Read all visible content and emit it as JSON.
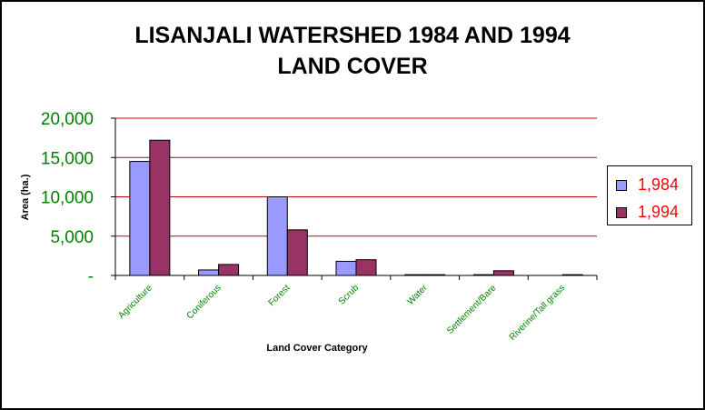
{
  "chart_data": {
    "type": "bar",
    "title_line1": "LISANJALI WATERSHED 1984 AND 1994",
    "title_line2": "LAND COVER",
    "xlabel": "Land Cover Category",
    "ylabel": "Area (ha.)",
    "categories": [
      "Agriculture",
      "Coniferous",
      "Forest",
      "Scrub",
      "Water",
      "Settlement/Bare",
      "Riverine/Tall grass"
    ],
    "series": [
      {
        "name": "1,984",
        "color": "#9999ff",
        "values": [
          14500,
          700,
          10000,
          1800,
          100,
          100,
          0
        ]
      },
      {
        "name": "1,994",
        "color": "#993366",
        "values": [
          17200,
          1400,
          5800,
          2000,
          100,
          600,
          100
        ]
      }
    ],
    "ylim": [
      0,
      20000
    ],
    "yticks": [
      {
        "value": 0,
        "label": "-"
      },
      {
        "value": 5000,
        "label": "5,000"
      },
      {
        "value": 10000,
        "label": "10,000"
      },
      {
        "value": 15000,
        "label": "15,000"
      },
      {
        "value": 20000,
        "label": "20,000"
      }
    ],
    "grid": true,
    "legend_position": "right"
  }
}
